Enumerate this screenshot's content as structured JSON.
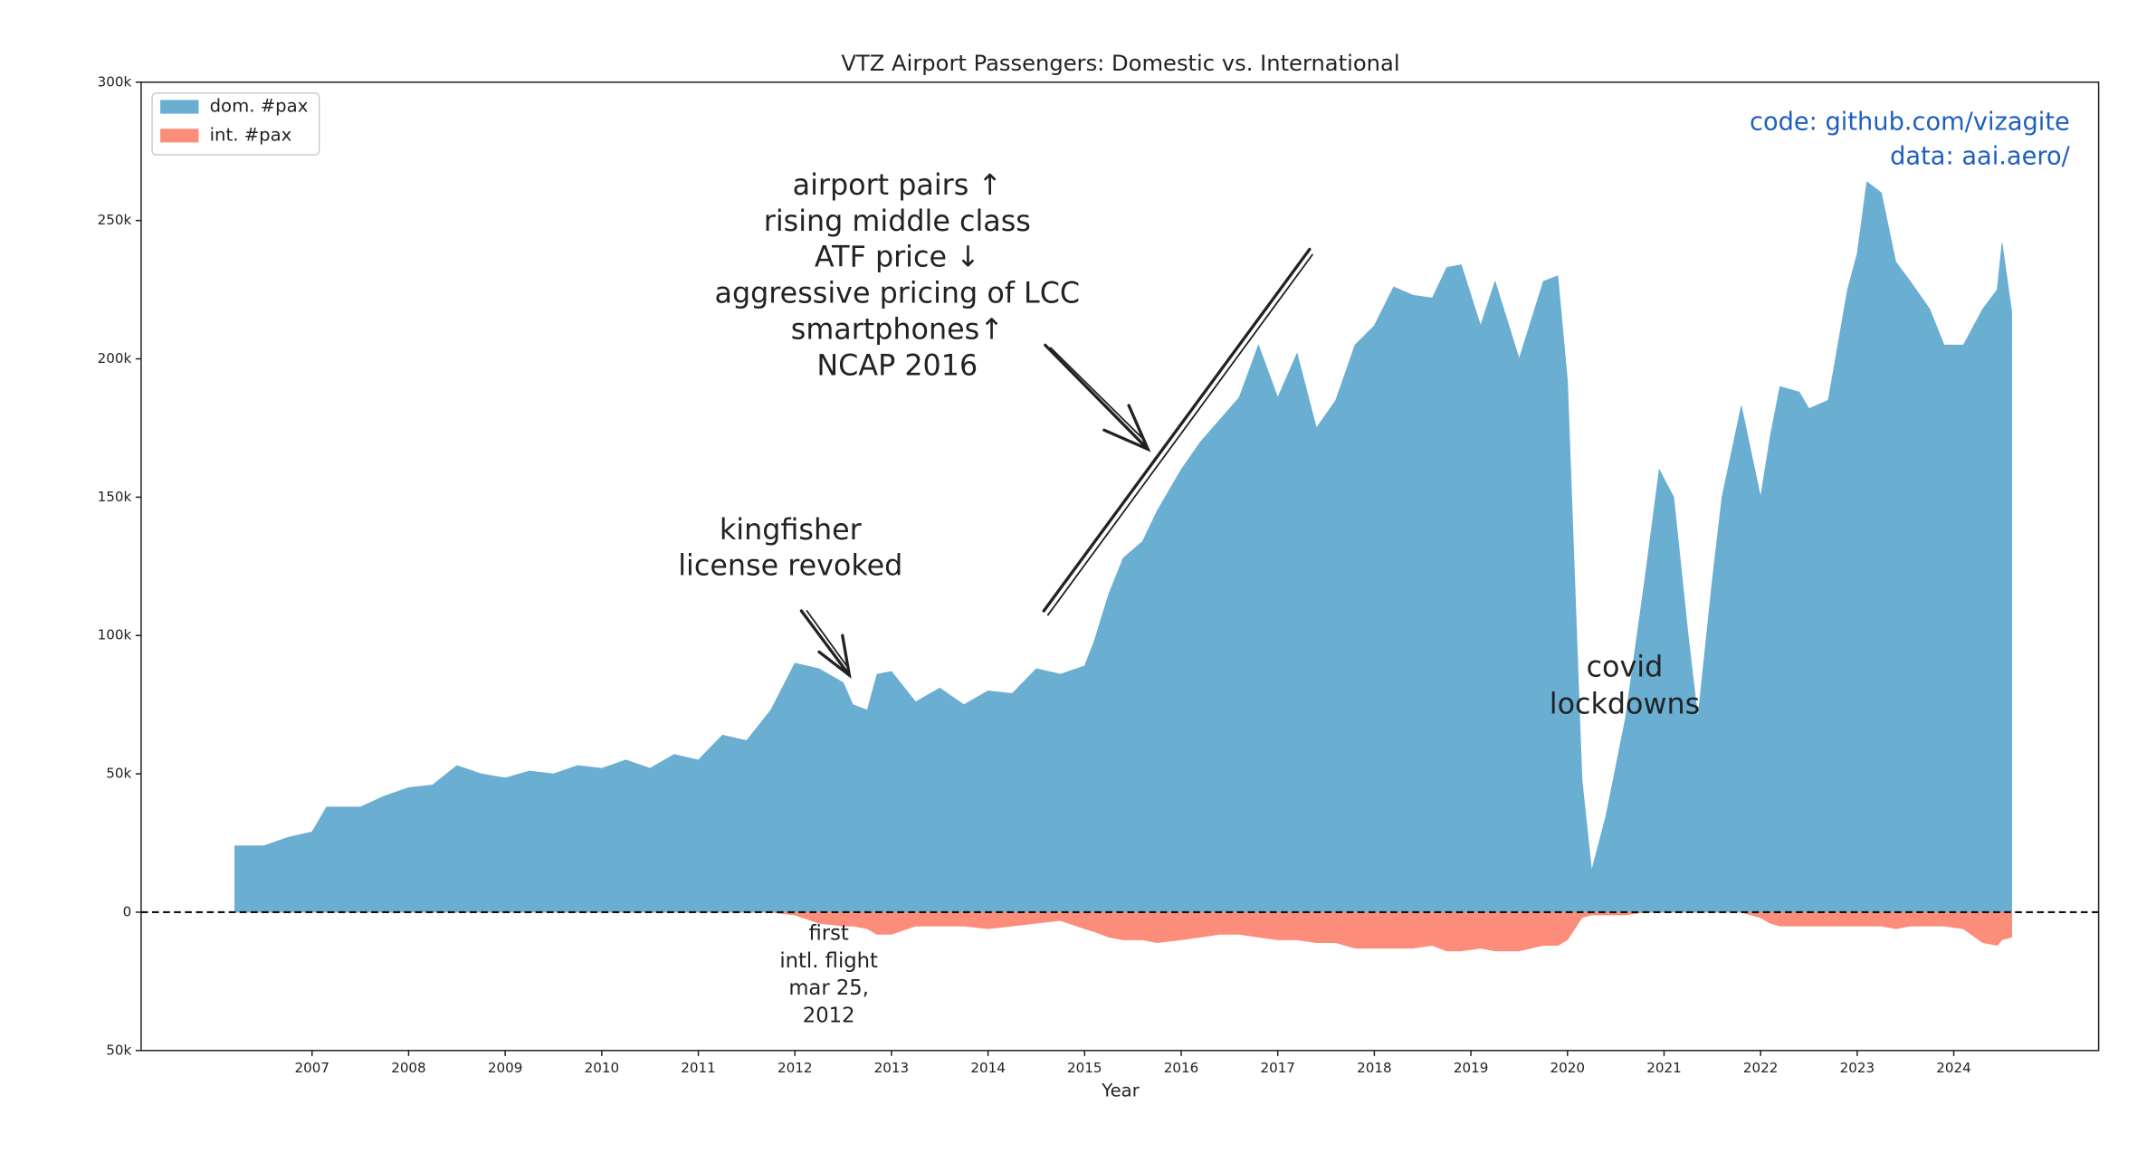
{
  "chart_data": {
    "type": "area",
    "title": "VTZ Airport Passengers: Domestic vs. International",
    "x_label": "Year",
    "x": [
      2006.2,
      2006.5,
      2006.75,
      2007.0,
      2007.15,
      2007.5,
      2007.75,
      2008.0,
      2008.25,
      2008.5,
      2008.75,
      2009.0,
      2009.25,
      2009.5,
      2009.75,
      2010.0,
      2010.25,
      2010.5,
      2010.75,
      2011.0,
      2011.25,
      2011.5,
      2011.75,
      2012.0,
      2012.25,
      2012.5,
      2012.6,
      2012.75,
      2012.85,
      2013.0,
      2013.25,
      2013.5,
      2013.75,
      2014.0,
      2014.25,
      2014.5,
      2014.75,
      2015.0,
      2015.1,
      2015.25,
      2015.4,
      2015.6,
      2015.75,
      2016.0,
      2016.2,
      2016.4,
      2016.6,
      2016.8,
      2017.0,
      2017.2,
      2017.4,
      2017.6,
      2017.8,
      2018.0,
      2018.2,
      2018.4,
      2018.6,
      2018.75,
      2018.9,
      2019.1,
      2019.25,
      2019.5,
      2019.75,
      2019.9,
      2020.0,
      2020.15,
      2020.25,
      2020.4,
      2020.6,
      2020.8,
      2020.95,
      2021.1,
      2021.25,
      2021.35,
      2021.5,
      2021.6,
      2021.8,
      2022.0,
      2022.1,
      2022.2,
      2022.4,
      2022.5,
      2022.7,
      2022.9,
      2023.0,
      2023.1,
      2023.25,
      2023.4,
      2023.55,
      2023.75,
      2023.9,
      2024.1,
      2024.3,
      2024.45,
      2024.5,
      2024.6
    ],
    "series": [
      {
        "name": "dom. #pax",
        "color": "#6aaed2",
        "values": [
          24000,
          24000,
          27000,
          29000,
          38000,
          38000,
          42000,
          45000,
          46000,
          53000,
          50000,
          48500,
          51000,
          50000,
          53000,
          52000,
          55000,
          52000,
          57000,
          55000,
          64000,
          62000,
          73000,
          90000,
          88000,
          83000,
          75000,
          73000,
          86000,
          87000,
          76000,
          81000,
          75000,
          80000,
          79000,
          88000,
          86000,
          89000,
          98000,
          115000,
          128000,
          134000,
          145000,
          160000,
          170000,
          178000,
          186000,
          205000,
          186000,
          202000,
          175000,
          185000,
          205000,
          212000,
          226000,
          223000,
          222000,
          233000,
          234000,
          212000,
          228000,
          200000,
          228000,
          230000,
          192000,
          48000,
          15000,
          35000,
          70000,
          120000,
          160000,
          150000,
          100000,
          70000,
          120000,
          150000,
          183000,
          150000,
          172000,
          190000,
          188000,
          182000,
          185000,
          225000,
          238000,
          264000,
          260000,
          235000,
          228000,
          218000,
          205000,
          205000,
          218000,
          225000,
          242000,
          217000
        ]
      },
      {
        "name": "int. #pax",
        "color": "#fc8d7a",
        "values": [
          0,
          0,
          0,
          0,
          0,
          0,
          0,
          0,
          0,
          0,
          0,
          0,
          0,
          0,
          0,
          0,
          0,
          0,
          0,
          0,
          0,
          0,
          0,
          -1000,
          -4000,
          -5000,
          -5000,
          -6000,
          -8000,
          -8000,
          -5000,
          -5000,
          -5000,
          -6000,
          -5000,
          -4000,
          -3000,
          -6000,
          -7000,
          -9000,
          -10000,
          -10000,
          -11000,
          -10000,
          -9000,
          -8000,
          -8000,
          -9000,
          -10000,
          -10000,
          -11000,
          -11000,
          -13000,
          -13000,
          -13000,
          -13000,
          -12000,
          -14000,
          -14000,
          -13000,
          -14000,
          -14000,
          -12000,
          -12000,
          -10000,
          -2000,
          -1000,
          -1000,
          -1000,
          0,
          0,
          0,
          0,
          0,
          0,
          0,
          0,
          -2000,
          -4000,
          -5000,
          -5000,
          -5000,
          -5000,
          -5000,
          -5000,
          -5000,
          -5000,
          -6000,
          -5000,
          -5000,
          -5000,
          -6000,
          -11000,
          -12000,
          -10000,
          -9000
        ]
      }
    ],
    "xlim": [
      2005.23,
      2025.5
    ],
    "ylim": [
      -50000,
      300000
    ],
    "xticks": [
      2007,
      2008,
      2009,
      2010,
      2011,
      2012,
      2013,
      2014,
      2015,
      2016,
      2017,
      2018,
      2019,
      2020,
      2021,
      2022,
      2023,
      2024
    ],
    "yticks": [
      {
        "value": -50000,
        "label": "50k"
      },
      0,
      {
        "value": 50000,
        "label": "50k"
      },
      {
        "value": 100000,
        "label": "100k"
      },
      {
        "value": 150000,
        "label": "150k"
      },
      {
        "value": 200000,
        "label": "200k"
      },
      {
        "value": 250000,
        "label": "250k"
      },
      {
        "value": 300000,
        "label": "300k"
      }
    ],
    "legend": "upper left",
    "annotations": [
      {
        "lines": [
          "airport pairs ↑",
          "rising middle class",
          "ATF price ↓",
          "aggressive pricing of LCC",
          "smartphones↑",
          "NCAP 2016"
        ]
      },
      {
        "lines": [
          "kingfisher",
          "license revoked"
        ]
      },
      {
        "lines": [
          "covid",
          "lockdowns"
        ]
      },
      {
        "lines": [
          "first",
          "intl. flight",
          "mar 25,",
          "2012"
        ]
      }
    ],
    "credits": [
      "code: github.com/vizagite",
      "data: aai.aero/"
    ]
  }
}
